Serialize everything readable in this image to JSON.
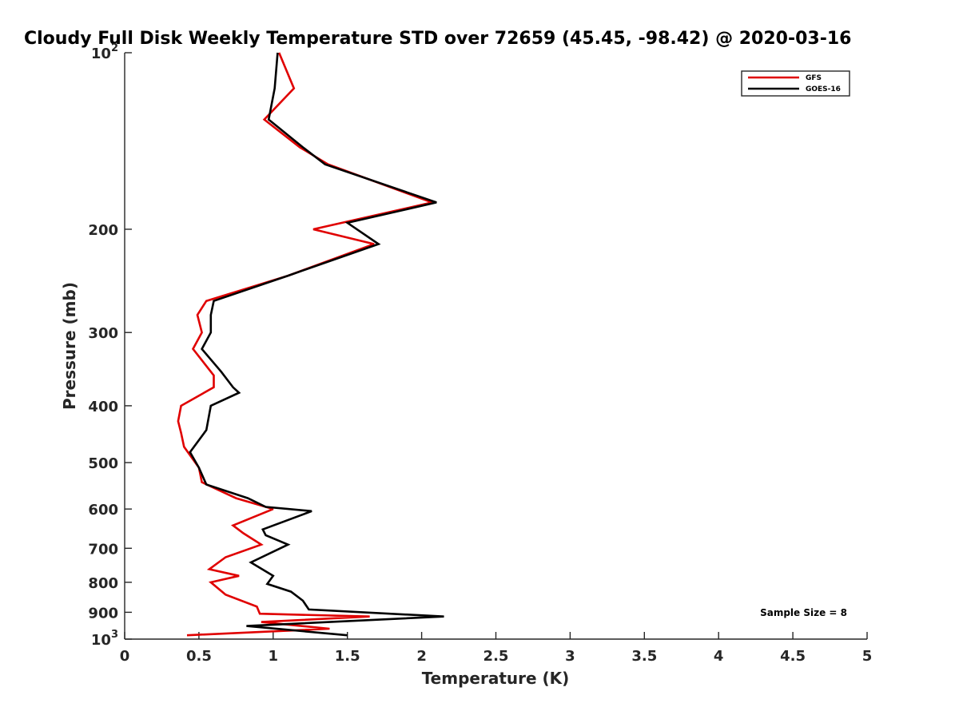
{
  "chart_data": {
    "type": "line",
    "title": "Cloudy Full Disk Weekly Temperature STD over 72659 (45.45, -98.42) @ 2020-03-16",
    "xlabel": "Temperature (K)",
    "ylabel": "Pressure (mb)",
    "xlim": [
      0,
      5
    ],
    "ylim": [
      100,
      1000
    ],
    "y_scale": "log",
    "y_reversed": true,
    "grid": false,
    "legend_position": "top-right",
    "x_ticks": [
      "0",
      "0.5",
      "1",
      "1.5",
      "2",
      "2.5",
      "3",
      "3.5",
      "4",
      "4.5",
      "5"
    ],
    "y_ticks": [
      {
        "value": 100,
        "base": "10",
        "exp": "2"
      },
      {
        "value": 200,
        "label": "200"
      },
      {
        "value": 300,
        "label": "300"
      },
      {
        "value": 400,
        "label": "400"
      },
      {
        "value": 500,
        "label": "500"
      },
      {
        "value": 600,
        "label": "600"
      },
      {
        "value": 700,
        "label": "700"
      },
      {
        "value": 800,
        "label": "800"
      },
      {
        "value": 900,
        "label": "900"
      },
      {
        "value": 1000,
        "base": "10",
        "exp": "3"
      }
    ],
    "annotation": "Sample Size = 8",
    "series": [
      {
        "name": "GFS",
        "color": "#e00000",
        "points": [
          [
            1.04,
            100
          ],
          [
            1.14,
            115
          ],
          [
            0.94,
            130
          ],
          [
            1.18,
            145
          ],
          [
            1.37,
            155
          ],
          [
            2.07,
            180
          ],
          [
            1.27,
            200
          ],
          [
            1.68,
            212
          ],
          [
            1.1,
            240
          ],
          [
            0.55,
            265
          ],
          [
            0.49,
            280
          ],
          [
            0.52,
            300
          ],
          [
            0.46,
            320
          ],
          [
            0.6,
            355
          ],
          [
            0.6,
            372
          ],
          [
            0.38,
            400
          ],
          [
            0.36,
            425
          ],
          [
            0.38,
            445
          ],
          [
            0.4,
            470
          ],
          [
            0.5,
            510
          ],
          [
            0.52,
            540
          ],
          [
            0.75,
            575
          ],
          [
            1.0,
            600
          ],
          [
            0.73,
            640
          ],
          [
            0.8,
            660
          ],
          [
            0.92,
            690
          ],
          [
            0.68,
            725
          ],
          [
            0.57,
            760
          ],
          [
            0.77,
            780
          ],
          [
            0.58,
            800
          ],
          [
            0.68,
            840
          ],
          [
            0.89,
            880
          ],
          [
            0.91,
            905
          ],
          [
            1.65,
            915
          ],
          [
            0.92,
            935
          ],
          [
            1.38,
            960
          ],
          [
            0.42,
            985
          ]
        ]
      },
      {
        "name": "GOES-16",
        "color": "#000000",
        "points": [
          [
            1.03,
            100
          ],
          [
            1.01,
            115
          ],
          [
            0.97,
            130
          ],
          [
            1.2,
            145
          ],
          [
            1.35,
            155
          ],
          [
            2.1,
            180
          ],
          [
            1.5,
            195
          ],
          [
            1.71,
            212
          ],
          [
            1.1,
            240
          ],
          [
            0.6,
            265
          ],
          [
            0.58,
            280
          ],
          [
            0.58,
            300
          ],
          [
            0.52,
            320
          ],
          [
            0.65,
            350
          ],
          [
            0.73,
            372
          ],
          [
            0.77,
            380
          ],
          [
            0.58,
            400
          ],
          [
            0.55,
            440
          ],
          [
            0.44,
            480
          ],
          [
            0.5,
            510
          ],
          [
            0.55,
            545
          ],
          [
            0.83,
            575
          ],
          [
            0.95,
            595
          ],
          [
            1.26,
            605
          ],
          [
            0.93,
            650
          ],
          [
            0.95,
            665
          ],
          [
            1.1,
            690
          ],
          [
            0.85,
            740
          ],
          [
            1.0,
            780
          ],
          [
            0.96,
            805
          ],
          [
            1.12,
            830
          ],
          [
            1.2,
            860
          ],
          [
            1.24,
            890
          ],
          [
            2.15,
            915
          ],
          [
            0.82,
            950
          ],
          [
            1.5,
            985
          ]
        ]
      }
    ]
  }
}
